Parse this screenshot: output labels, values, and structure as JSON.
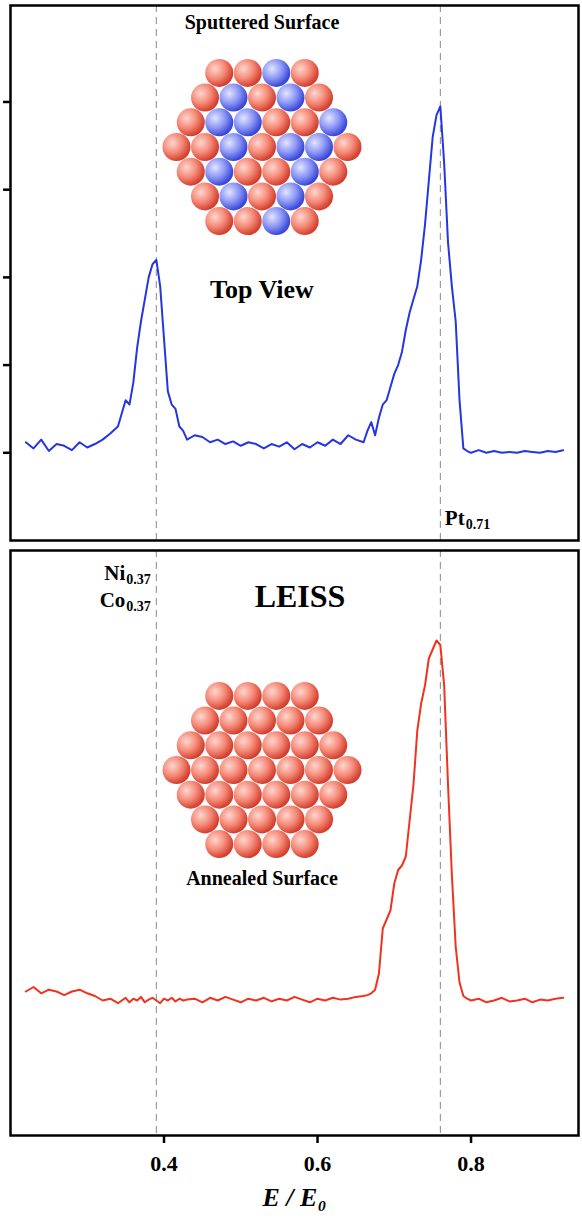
{
  "chart_data": [
    {
      "type": "line",
      "annotations": [
        "Sputtered Surface",
        "Top View"
      ],
      "peak_labels": [
        {
          "x": 0.76,
          "text": "Pt",
          "subscript": "0.71"
        }
      ],
      "vlines": [
        0.39,
        0.76
      ],
      "xlim": [
        0.2,
        0.94
      ],
      "ylim": [
        -1,
        5.1
      ],
      "yticks": [
        0,
        1,
        2,
        3,
        4
      ],
      "tick_labels": false,
      "x": [
        0.22,
        0.23,
        0.24,
        0.25,
        0.26,
        0.27,
        0.28,
        0.29,
        0.3,
        0.31,
        0.32,
        0.33,
        0.34,
        0.345,
        0.35,
        0.355,
        0.36,
        0.365,
        0.37,
        0.375,
        0.38,
        0.385,
        0.39,
        0.395,
        0.4,
        0.405,
        0.41,
        0.415,
        0.42,
        0.425,
        0.43,
        0.44,
        0.45,
        0.46,
        0.47,
        0.48,
        0.49,
        0.5,
        0.51,
        0.52,
        0.53,
        0.54,
        0.55,
        0.56,
        0.57,
        0.58,
        0.59,
        0.6,
        0.61,
        0.62,
        0.63,
        0.64,
        0.65,
        0.66,
        0.665,
        0.67,
        0.675,
        0.68,
        0.685,
        0.69,
        0.695,
        0.7,
        0.705,
        0.71,
        0.715,
        0.72,
        0.725,
        0.73,
        0.735,
        0.74,
        0.745,
        0.75,
        0.755,
        0.76,
        0.765,
        0.77,
        0.775,
        0.78,
        0.785,
        0.79,
        0.795,
        0.8,
        0.81,
        0.82,
        0.83,
        0.84,
        0.85,
        0.86,
        0.87,
        0.88,
        0.89,
        0.9,
        0.91,
        0.92
      ],
      "series": [
        {
          "color": "#2536e0",
          "values": [
            0.12,
            0.05,
            0.15,
            0.02,
            0.1,
            0.08,
            0.03,
            0.12,
            0.06,
            0.1,
            0.15,
            0.22,
            0.3,
            0.45,
            0.6,
            0.55,
            0.8,
            1.2,
            1.5,
            1.75,
            2.0,
            2.15,
            2.2,
            1.9,
            1.3,
            0.7,
            0.55,
            0.5,
            0.3,
            0.25,
            0.15,
            0.2,
            0.18,
            0.12,
            0.15,
            0.1,
            0.13,
            0.08,
            0.12,
            0.1,
            0.05,
            0.1,
            0.07,
            0.12,
            0.04,
            0.1,
            0.06,
            0.12,
            0.08,
            0.15,
            0.1,
            0.2,
            0.15,
            0.12,
            0.25,
            0.35,
            0.2,
            0.4,
            0.55,
            0.6,
            0.75,
            0.9,
            1.0,
            1.15,
            1.4,
            1.6,
            1.75,
            1.9,
            2.2,
            2.6,
            3.1,
            3.6,
            3.85,
            3.95,
            3.3,
            2.4,
            1.9,
            1.5,
            0.6,
            0.05,
            0.02,
            0.0,
            0.03,
            0,
            0.02,
            0,
            0.01,
            0,
            0.02,
            0.01,
            0,
            0.02,
            0.01,
            0.03
          ]
        }
      ]
    },
    {
      "type": "line",
      "title": "LEISS",
      "annotations": [
        "Annealed Surface"
      ],
      "peak_labels": [
        {
          "x": 0.39,
          "text": "Ni",
          "subscript": "0.37"
        },
        {
          "x": 0.39,
          "text": "Co",
          "subscript": "0.37"
        }
      ],
      "vlines": [
        0.39,
        0.76
      ],
      "xlabel": "E / E₀",
      "xlim": [
        0.2,
        0.94
      ],
      "ylim": [
        -1.5,
        5
      ],
      "xticks": [
        0.4,
        0.6,
        0.8
      ],
      "tick_labels": "x",
      "x": [
        0.22,
        0.23,
        0.24,
        0.25,
        0.26,
        0.27,
        0.28,
        0.29,
        0.3,
        0.31,
        0.32,
        0.33,
        0.34,
        0.345,
        0.35,
        0.355,
        0.36,
        0.365,
        0.37,
        0.375,
        0.38,
        0.385,
        0.39,
        0.395,
        0.4,
        0.405,
        0.41,
        0.415,
        0.42,
        0.425,
        0.43,
        0.44,
        0.45,
        0.46,
        0.47,
        0.48,
        0.49,
        0.5,
        0.51,
        0.52,
        0.53,
        0.54,
        0.55,
        0.56,
        0.57,
        0.58,
        0.59,
        0.6,
        0.61,
        0.62,
        0.63,
        0.64,
        0.65,
        0.66,
        0.665,
        0.67,
        0.675,
        0.68,
        0.685,
        0.69,
        0.695,
        0.7,
        0.705,
        0.71,
        0.715,
        0.72,
        0.725,
        0.73,
        0.735,
        0.74,
        0.745,
        0.75,
        0.755,
        0.76,
        0.765,
        0.77,
        0.775,
        0.78,
        0.785,
        0.79,
        0.795,
        0.8,
        0.81,
        0.82,
        0.83,
        0.84,
        0.85,
        0.86,
        0.87,
        0.88,
        0.89,
        0.9,
        0.91,
        0.92
      ],
      "series": [
        {
          "color": "#f0321e",
          "values": [
            0.1,
            0.15,
            0.08,
            0.12,
            0.1,
            0.06,
            0.1,
            0.12,
            0.08,
            0.05,
            0.0,
            0.02,
            -0.03,
            0.0,
            0.03,
            -0.02,
            0.02,
            0.0,
            0.04,
            -0.02,
            0.01,
            0.03,
            0.0,
            -0.03,
            0.02,
            0.0,
            0.03,
            -0.01,
            0.02,
            0.0,
            0.01,
            0.02,
            -0.02,
            0.03,
            0.0,
            0.04,
            0.01,
            -0.02,
            0.02,
            0.0,
            0.03,
            -0.01,
            0.02,
            0.0,
            0.04,
            0.01,
            -0.02,
            0.02,
            0.0,
            0.03,
            0.01,
            0.02,
            0.04,
            0.05,
            0.06,
            0.08,
            0.12,
            0.3,
            0.8,
            0.9,
            1.0,
            1.3,
            1.45,
            1.5,
            1.6,
            2.0,
            2.4,
            3.0,
            3.3,
            3.5,
            3.8,
            3.9,
            4.0,
            3.95,
            3.5,
            2.4,
            1.4,
            0.6,
            0.2,
            0.05,
            0.02,
            0.0,
            0.02,
            -0.02,
            0.0,
            0.03,
            -0.01,
            0.0,
            0.02,
            -0.02,
            0.01,
            0.0,
            0.02,
            0.03
          ]
        }
      ]
    }
  ]
}
